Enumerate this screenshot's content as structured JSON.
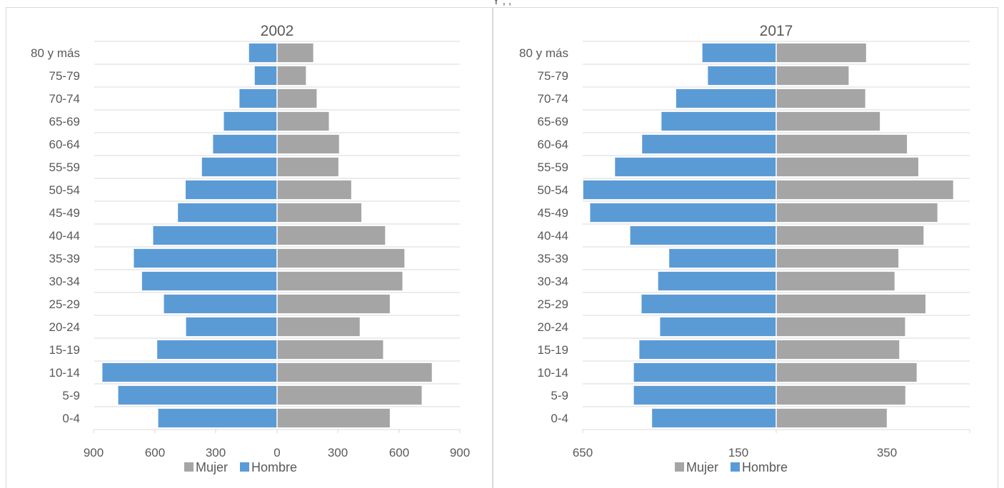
{
  "top_title": "Y        ,            ,   ",
  "colors": {
    "mujer": "#a5a5a5",
    "hombre": "#5b9bd5",
    "grid": "#d9d9d9",
    "frame": "#d9d9d9",
    "text": "#595959"
  },
  "chart_data": [
    {
      "type": "bar",
      "orientation": "horizontal",
      "title": "2002",
      "categories": [
        "0-4",
        "5-9",
        "10-14",
        "15-19",
        "20-24",
        "25-29",
        "30-34",
        "35-39",
        "40-44",
        "45-49",
        "50-54",
        "55-59",
        "60-64",
        "65-69",
        "70-74",
        "75-79",
        "80 y más"
      ],
      "series": [
        {
          "name": "Mujer",
          "values": [
            555,
            712,
            762,
            522,
            407,
            555,
            617,
            627,
            532,
            415,
            365,
            302,
            305,
            255,
            195,
            142,
            178
          ]
        },
        {
          "name": "Hombre",
          "values": [
            585,
            782,
            860,
            590,
            448,
            557,
            665,
            705,
            610,
            488,
            450,
            370,
            315,
            262,
            185,
            110,
            138
          ]
        }
      ],
      "xlim": [
        -900,
        900
      ],
      "x_tick_labels": [
        "900",
        "600",
        "300",
        "0",
        "300",
        "600",
        "900"
      ],
      "grid": true,
      "legend": "bottom"
    },
    {
      "type": "bar",
      "orientation": "horizontal",
      "title": "2017",
      "categories": [
        "0-4",
        "5-9",
        "10-14",
        "15-19",
        "20-24",
        "25-29",
        "30-34",
        "35-39",
        "40-44",
        "45-49",
        "50-54",
        "55-59",
        "60-64",
        "65-69",
        "70-74",
        "75-79",
        "80 y más"
      ],
      "series": [
        {
          "name": "Mujer",
          "values": [
            400,
            467,
            508,
            445,
            466,
            540,
            428,
            442,
            533,
            583,
            640,
            514,
            473,
            375,
            322,
            262,
            325
          ]
        },
        {
          "name": "Hombre",
          "values": [
            449,
            515,
            515,
            495,
            420,
            487,
            427,
            387,
            528,
            673,
            698,
            583,
            485,
            415,
            362,
            247,
            267
          ]
        }
      ],
      "xlim": [
        -700,
        700
      ],
      "x_tick_labels": [
        "650",
        "150",
        "350"
      ],
      "grid": true,
      "legend": "bottom"
    }
  ],
  "legend": {
    "mujer_label": "Mujer",
    "hombre_label": "Hombre"
  }
}
